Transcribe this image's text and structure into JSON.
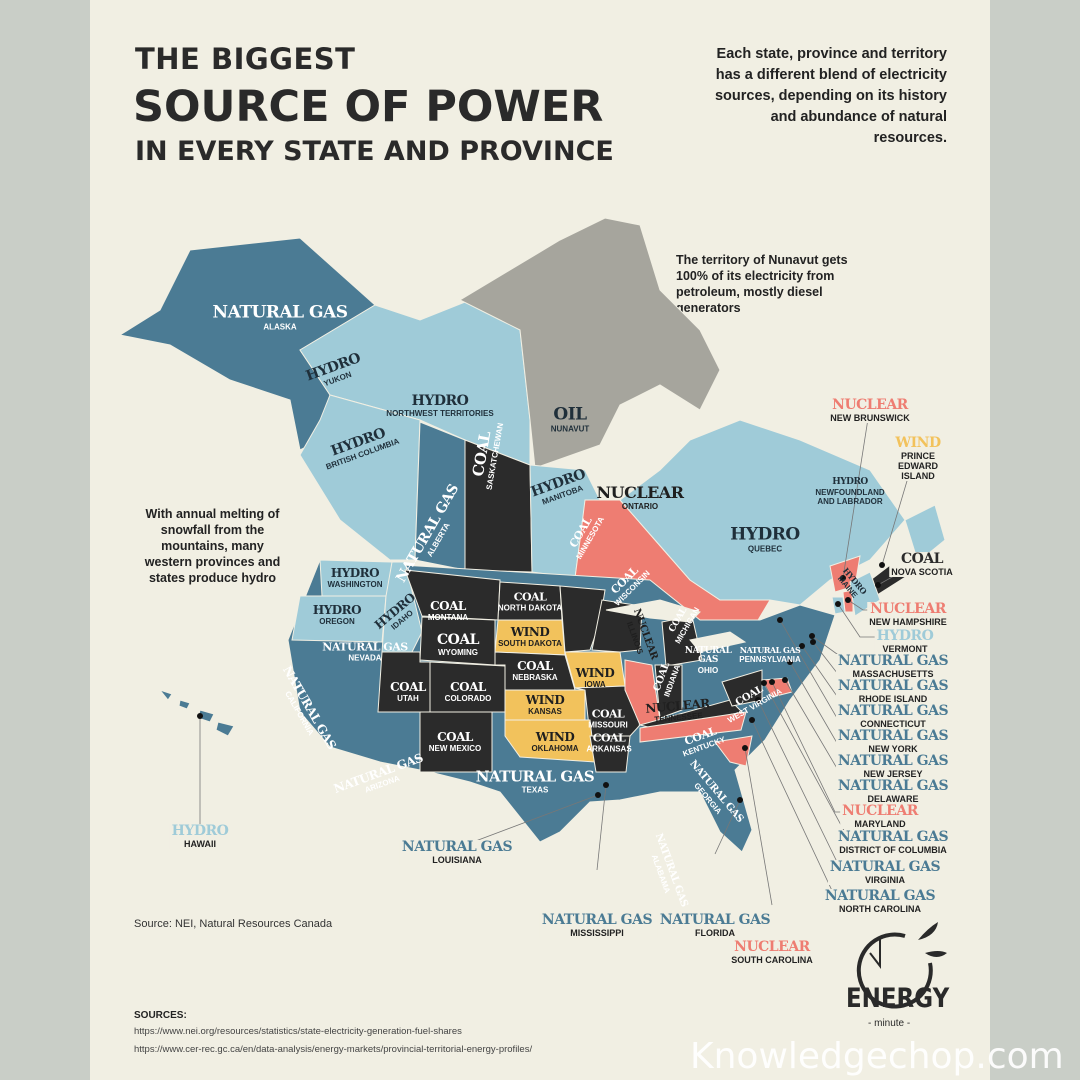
{
  "title": {
    "line1": "THE BIGGEST",
    "line2": "SOURCE OF POWER",
    "line3": "IN EVERY STATE AND PROVINCE"
  },
  "intro": "Each state, province and territory has a different blend of electricity sources, depending on its history and abundance of natural resources.",
  "notes": {
    "nunavut": "The territory of Nunavut gets 100% of its electricity from petroleum, mostly diesel generators",
    "west": "With annual melting of snowfall from the mountains, many western provinces and states produce hydro"
  },
  "fuel_colors": {
    "NATURAL GAS": "#4b7b94",
    "HYDRO": "#9fcbd8",
    "COAL": "#2b2b2b",
    "NUCLEAR": "#ee7d72",
    "WIND": "#f2c25c",
    "OIL": "#a6a59d"
  },
  "map": {
    "labels": [
      {
        "fuel": "NATURAL GAS",
        "region": "ALASKA"
      },
      {
        "fuel": "HYDRO",
        "region": "YUKON"
      },
      {
        "fuel": "HYDRO",
        "region": "NORTHWEST TERRITORIES"
      },
      {
        "fuel": "OIL",
        "region": "NUNAVUT"
      },
      {
        "fuel": "HYDRO",
        "region": "BRITISH COLUMBIA"
      },
      {
        "fuel": "NATURAL GAS",
        "region": "ALBERTA"
      },
      {
        "fuel": "COAL",
        "region": "SASKATCHEWAN"
      },
      {
        "fuel": "HYDRO",
        "region": "MANITOBA"
      },
      {
        "fuel": "NUCLEAR",
        "region": "ONTARIO"
      },
      {
        "fuel": "HYDRO",
        "region": "QUEBEC"
      },
      {
        "fuel": "HYDRO",
        "region": "NEWFOUNDLAND AND LABRADOR"
      },
      {
        "fuel": "HYDRO",
        "region": "WASHINGTON"
      },
      {
        "fuel": "HYDRO",
        "region": "OREGON"
      },
      {
        "fuel": "HYDRO",
        "region": "IDAHO"
      },
      {
        "fuel": "COAL",
        "region": "MONTANA"
      },
      {
        "fuel": "COAL",
        "region": "WYOMING"
      },
      {
        "fuel": "COAL",
        "region": "NORTH DAKOTA"
      },
      {
        "fuel": "WIND",
        "region": "SOUTH DAKOTA"
      },
      {
        "fuel": "COAL",
        "region": "MINNESOTA"
      },
      {
        "fuel": "COAL",
        "region": "WISCONSIN"
      },
      {
        "fuel": "COAL",
        "region": "MICHIGAN"
      },
      {
        "fuel": "WIND",
        "region": "IOWA"
      },
      {
        "fuel": "COAL",
        "region": "NEBRASKA"
      },
      {
        "fuel": "NATURAL GAS",
        "region": "NEVADA"
      },
      {
        "fuel": "NATURAL GAS",
        "region": "CALIFORNIA"
      },
      {
        "fuel": "COAL",
        "region": "UTAH"
      },
      {
        "fuel": "COAL",
        "region": "COLORADO"
      },
      {
        "fuel": "WIND",
        "region": "KANSAS"
      },
      {
        "fuel": "COAL",
        "region": "MISSOURI"
      },
      {
        "fuel": "NUCLEAR",
        "region": "ILLINOIS"
      },
      {
        "fuel": "COAL",
        "region": "INDIANA"
      },
      {
        "fuel": "NATURAL GAS",
        "region": "OHIO"
      },
      {
        "fuel": "COAL",
        "region": "KENTUCKY"
      },
      {
        "fuel": "COAL",
        "region": "WEST VIRGINIA"
      },
      {
        "fuel": "NATURAL GAS",
        "region": "PENNSYLVANIA"
      },
      {
        "fuel": "NATURAL GAS",
        "region": "ARIZONA"
      },
      {
        "fuel": "COAL",
        "region": "NEW MEXICO"
      },
      {
        "fuel": "WIND",
        "region": "OKLAHOMA"
      },
      {
        "fuel": "COAL",
        "region": "ARKANSAS"
      },
      {
        "fuel": "NUCLEAR",
        "region": "TENNESSEE"
      },
      {
        "fuel": "NATURAL GAS",
        "region": "TEXAS"
      },
      {
        "fuel": "NATURAL GAS",
        "region": "ALABAMA"
      },
      {
        "fuel": "NATURAL GAS",
        "region": "GEORGIA"
      },
      {
        "fuel": "HYDRO",
        "region": "MAINE"
      }
    ]
  },
  "callouts": [
    {
      "fuel": "NUCLEAR",
      "region": "NEW BRUNSWICK"
    },
    {
      "fuel": "WIND",
      "region": "PRINCE EDWARD ISLAND"
    },
    {
      "fuel": "COAL",
      "region": "NOVA SCOTIA"
    },
    {
      "fuel": "NUCLEAR",
      "region": "NEW HAMPSHIRE"
    },
    {
      "fuel": "HYDRO",
      "region": "VERMONT"
    },
    {
      "fuel": "NATURAL GAS",
      "region": "MASSACHUSETTS"
    },
    {
      "fuel": "NATURAL GAS",
      "region": "RHODE ISLAND"
    },
    {
      "fuel": "NATURAL GAS",
      "region": "CONNECTICUT"
    },
    {
      "fuel": "NATURAL GAS",
      "region": "NEW YORK"
    },
    {
      "fuel": "NATURAL GAS",
      "region": "NEW JERSEY"
    },
    {
      "fuel": "NATURAL GAS",
      "region": "DELAWARE"
    },
    {
      "fuel": "NUCLEAR",
      "region": "MARYLAND"
    },
    {
      "fuel": "NATURAL GAS",
      "region": "DISTRICT OF COLUMBIA"
    },
    {
      "fuel": "NATURAL GAS",
      "region": "VIRGINIA"
    },
    {
      "fuel": "NATURAL GAS",
      "region": "NORTH CAROLINA"
    },
    {
      "fuel": "NUCLEAR",
      "region": "SOUTH CAROLINA"
    },
    {
      "fuel": "NATURAL GAS",
      "region": "FLORIDA"
    },
    {
      "fuel": "NATURAL GAS",
      "region": "MISSISSIPPI"
    },
    {
      "fuel": "NATURAL GAS",
      "region": "LOUISIANA"
    },
    {
      "fuel": "HYDRO",
      "region": "HAWAII"
    }
  ],
  "source": "Source: NEI, Natural Resources Canada",
  "sources": {
    "heading": "SOURCES:",
    "urls": [
      "https://www.nei.org/resources/statistics/state-electricity-generation-fuel-shares",
      "https://www.cer-rec.gc.ca/en/data-analysis/energy-markets/provincial-territorial-energy-profiles/"
    ]
  },
  "logo": {
    "word": "ENERGY",
    "sub": "- minute -"
  },
  "watermark": "Knowledgechop.com"
}
